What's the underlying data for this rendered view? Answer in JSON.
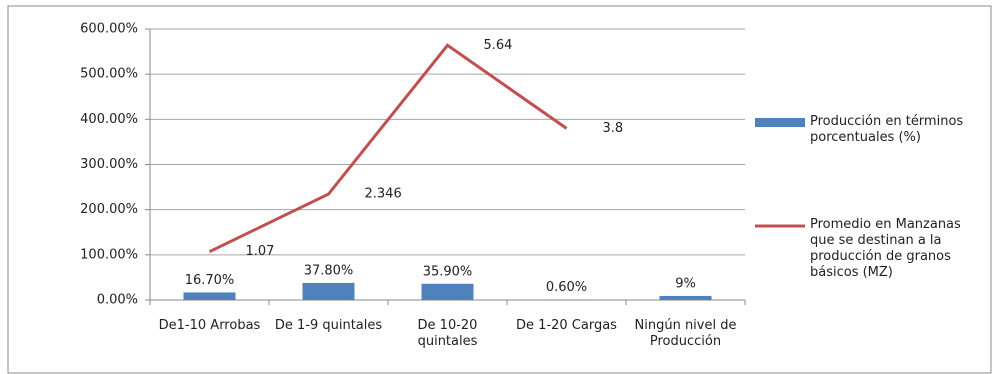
{
  "chart_data": {
    "type": "bar",
    "categories": [
      "De1-10 Arrobas",
      "De 1-9 quintales",
      "De 10-20 quintales",
      "De 1-20 Cargas",
      "Ningún nivel de Producción"
    ],
    "series": [
      {
        "name": "Producción en términos porcentuales (%)",
        "type": "bar",
        "color": "#4f81bd",
        "values": [
          16.7,
          37.8,
          35.9,
          0.6,
          9
        ],
        "value_labels": [
          "16.70%",
          "37.80%",
          "35.90%",
          "0.60%",
          "9%"
        ]
      },
      {
        "name": "Promedio en Manzanas que se destinan a la producción de granos básicos (MZ)",
        "type": "line",
        "color": "#c0504d",
        "values": [
          107,
          234.6,
          564,
          380,
          null
        ],
        "value_labels": [
          "1.07",
          "2.346",
          "5.64",
          "3.8",
          null
        ]
      }
    ],
    "ylim": [
      0,
      600
    ],
    "yticks": [
      {
        "value": 0,
        "label": "0.00%"
      },
      {
        "value": 100,
        "label": "100.00%"
      },
      {
        "value": 200,
        "label": "200.00%"
      },
      {
        "value": 300,
        "label": "300.00%"
      },
      {
        "value": 400,
        "label": "400.00%"
      },
      {
        "value": 500,
        "label": "500.00%"
      },
      {
        "value": 600,
        "label": "600.00%"
      }
    ],
    "grid": true,
    "legend": "right"
  }
}
